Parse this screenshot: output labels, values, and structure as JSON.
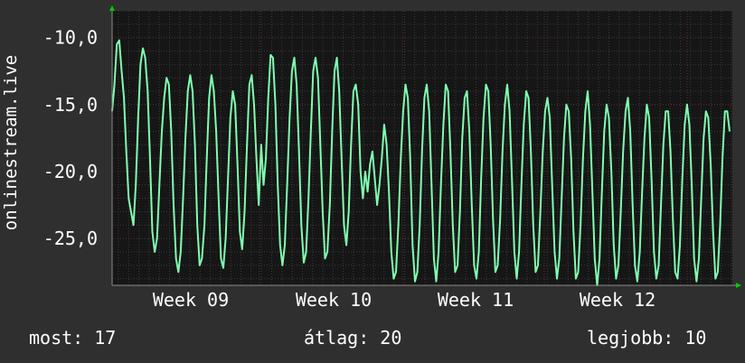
{
  "chart_data": {
    "type": "line",
    "ylabel": "onlinestream.live",
    "yticks": [
      "-10,0",
      "-15,0",
      "-20,0",
      "-25,0"
    ],
    "ytick_values": [
      -10,
      -15,
      -20,
      -25
    ],
    "ylim": [
      -28.5,
      -8.0
    ],
    "xticks": [
      "Week 09",
      "Week 10",
      "Week 11",
      "Week 12"
    ],
    "grid": true,
    "colors": {
      "background": "#2f2f2f",
      "plot": "#161616",
      "line": "#7fffb0",
      "grid": "#3a3a3a",
      "accent_grid": "#5a2a2a",
      "arrow": "#00cc00"
    },
    "series": [
      {
        "name": "",
        "values": [
          -15.5,
          -13.5,
          -10.5,
          -10.2,
          -12.5,
          -14.5,
          -18.5,
          -22.0,
          -23.0,
          -24.0,
          -21.0,
          -16.0,
          -12.0,
          -10.8,
          -11.5,
          -14.0,
          -19.0,
          -24.5,
          -26.0,
          -25.0,
          -21.0,
          -17.0,
          -14.5,
          -13.0,
          -13.5,
          -17.0,
          -22.5,
          -26.5,
          -27.5,
          -26.0,
          -22.0,
          -17.5,
          -14.0,
          -12.8,
          -14.0,
          -18.0,
          -24.0,
          -27.0,
          -26.5,
          -24.0,
          -19.0,
          -14.5,
          -12.8,
          -14.0,
          -17.0,
          -22.0,
          -26.5,
          -27.2,
          -25.0,
          -20.5,
          -16.0,
          -14.0,
          -15.0,
          -19.5,
          -24.5,
          -25.8,
          -23.0,
          -18.0,
          -13.5,
          -12.8,
          -15.0,
          -19.0,
          -22.5,
          -18.0,
          -21.0,
          -19.0,
          -14.5,
          -11.3,
          -11.5,
          -15.0,
          -21.0,
          -25.5,
          -27.0,
          -25.5,
          -21.0,
          -16.0,
          -12.5,
          -11.5,
          -13.5,
          -18.5,
          -24.0,
          -26.8,
          -26.0,
          -22.0,
          -17.0,
          -12.5,
          -11.5,
          -13.0,
          -18.0,
          -23.0,
          -26.5,
          -26.0,
          -22.5,
          -17.0,
          -12.5,
          -11.5,
          -14.0,
          -19.0,
          -24.0,
          -25.5,
          -23.0,
          -18.0,
          -14.0,
          -13.5,
          -15.0,
          -20.0,
          -22.0,
          -20.0,
          -21.5,
          -19.5,
          -18.5,
          -20.5,
          -22.5,
          -21.0,
          -19.0,
          -16.5,
          -18.0,
          -21.5,
          -26.0,
          -28.0,
          -27.5,
          -24.0,
          -19.0,
          -15.5,
          -13.5,
          -14.5,
          -19.0,
          -25.5,
          -28.2,
          -27.5,
          -24.0,
          -18.5,
          -14.5,
          -13.5,
          -15.5,
          -21.0,
          -26.5,
          -28.2,
          -26.0,
          -21.0,
          -16.5,
          -13.5,
          -14.0,
          -18.5,
          -24.0,
          -27.5,
          -27.0,
          -23.0,
          -17.5,
          -14.5,
          -14.0,
          -17.0,
          -22.5,
          -27.0,
          -28.0,
          -26.0,
          -20.5,
          -16.0,
          -13.5,
          -14.0,
          -18.0,
          -23.5,
          -27.5,
          -27.0,
          -23.5,
          -18.5,
          -15.0,
          -13.5,
          -15.5,
          -20.5,
          -26.0,
          -28.0,
          -26.0,
          -21.0,
          -16.5,
          -14.0,
          -14.5,
          -18.5,
          -24.0,
          -27.5,
          -27.0,
          -23.0,
          -18.5,
          -15.5,
          -14.5,
          -16.0,
          -21.0,
          -26.0,
          -28.0,
          -26.5,
          -22.0,
          -17.5,
          -15.0,
          -15.5,
          -19.0,
          -24.5,
          -28.0,
          -27.5,
          -24.0,
          -19.0,
          -15.5,
          -14.0,
          -16.5,
          -21.5,
          -26.5,
          -28.5,
          -26.5,
          -21.5,
          -17.0,
          -15.0,
          -16.0,
          -20.0,
          -25.5,
          -28.0,
          -27.0,
          -23.0,
          -18.5,
          -15.5,
          -14.5,
          -17.0,
          -22.5,
          -27.0,
          -28.2,
          -26.0,
          -21.5,
          -17.5,
          -15.0,
          -16.0,
          -20.5,
          -26.0,
          -28.0,
          -27.0,
          -22.5,
          -18.0,
          -15.5,
          -15.5,
          -18.5,
          -23.5,
          -27.5,
          -28.0,
          -25.5,
          -20.5,
          -16.5,
          -15.0,
          -16.5,
          -21.0,
          -26.5,
          -28.2,
          -26.5,
          -22.0,
          -17.5,
          -15.5,
          -16.0,
          -19.5,
          -24.5,
          -28.0,
          -27.5,
          -24.0,
          -19.0,
          -15.5,
          -15.5,
          -17.0
        ]
      }
    ]
  },
  "footer": {
    "current": "most: 17",
    "average": "átlag: 20",
    "best": "legjobb: 10"
  }
}
